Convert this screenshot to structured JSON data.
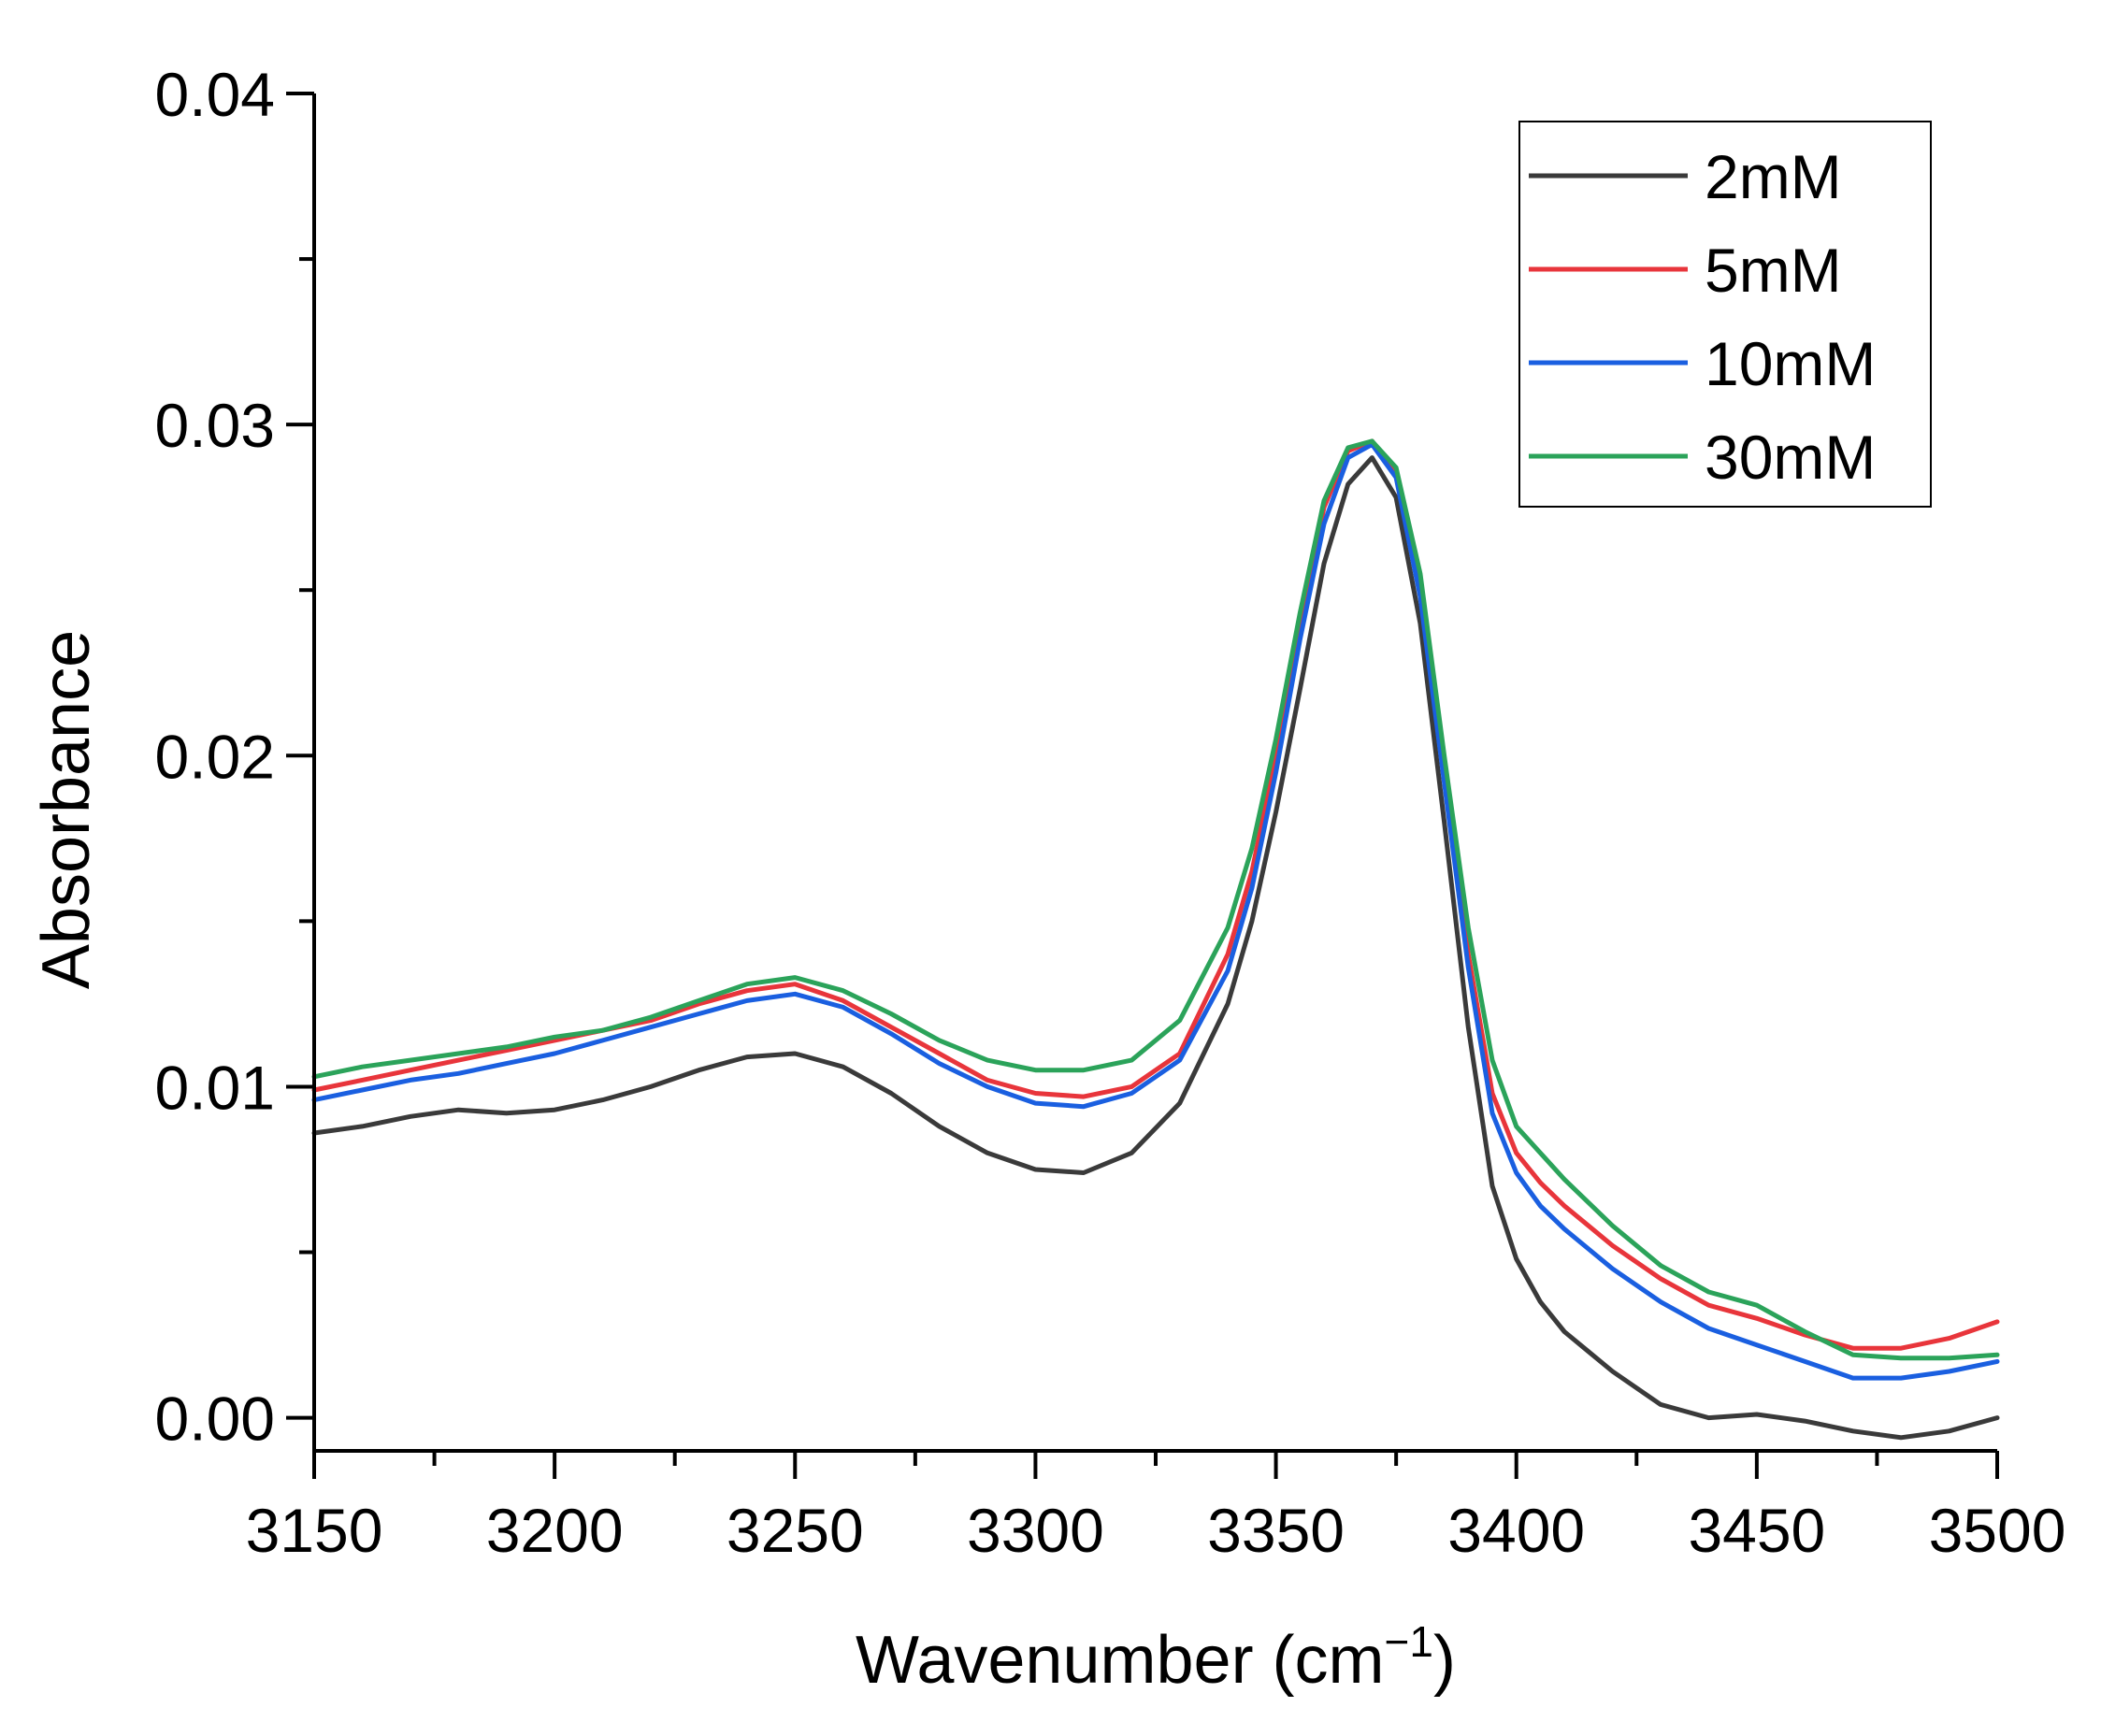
{
  "chart_data": {
    "type": "line",
    "title": "",
    "xlabel": "Wavenumber (cm",
    "xlabel_sup": "−1",
    "xlabel_close": ")",
    "ylabel": "Absorbance",
    "xlim": [
      3150,
      3500
    ],
    "ylim": [
      -0.001,
      0.04
    ],
    "xticks": [
      3150,
      3200,
      3250,
      3300,
      3350,
      3400,
      3450,
      3500
    ],
    "xtick_labels": [
      "3150",
      "3200",
      "3250",
      "3300",
      "3350",
      "3400",
      "3450",
      "3500"
    ],
    "yticks": [
      0.0,
      0.01,
      0.02,
      0.03,
      0.04
    ],
    "ytick_labels": [
      "0.00",
      "0.01",
      "0.02",
      "0.03",
      "0.04"
    ],
    "grid": false,
    "legend_position": "top-right",
    "x": [
      3150,
      3160,
      3170,
      3180,
      3190,
      3200,
      3210,
      3220,
      3230,
      3240,
      3250,
      3260,
      3270,
      3280,
      3290,
      3300,
      3310,
      3320,
      3330,
      3340,
      3345,
      3350,
      3355,
      3360,
      3365,
      3370,
      3375,
      3380,
      3385,
      3390,
      3395,
      3400,
      3405,
      3410,
      3415,
      3420,
      3430,
      3440,
      3450,
      3460,
      3470,
      3480,
      3490,
      3500
    ],
    "series": [
      {
        "name": "2mM",
        "color": "#3a3a3a",
        "values": [
          0.0086,
          0.0088,
          0.0091,
          0.0093,
          0.0092,
          0.0093,
          0.0096,
          0.01,
          0.0105,
          0.0109,
          0.011,
          0.0106,
          0.0098,
          0.0088,
          0.008,
          0.0075,
          0.0074,
          0.008,
          0.0095,
          0.0125,
          0.015,
          0.0183,
          0.022,
          0.0258,
          0.0282,
          0.029,
          0.0278,
          0.024,
          0.018,
          0.0118,
          0.007,
          0.0048,
          0.0035,
          0.0026,
          0.002,
          0.0014,
          0.0004,
          0.0,
          0.0001,
          -0.0001,
          -0.0004,
          -0.0006,
          -0.0004,
          0.0
        ]
      },
      {
        "name": "5mM",
        "color": "#e8353b",
        "values": [
          0.0099,
          0.0102,
          0.0105,
          0.0108,
          0.0111,
          0.0114,
          0.0117,
          0.012,
          0.0125,
          0.0129,
          0.0131,
          0.0126,
          0.0118,
          0.011,
          0.0102,
          0.0098,
          0.0097,
          0.01,
          0.011,
          0.014,
          0.0165,
          0.02,
          0.024,
          0.0275,
          0.0292,
          0.0295,
          0.0285,
          0.025,
          0.0195,
          0.014,
          0.0098,
          0.008,
          0.0071,
          0.0064,
          0.0058,
          0.0052,
          0.0042,
          0.0034,
          0.003,
          0.0025,
          0.0021,
          0.0021,
          0.0024,
          0.0029
        ]
      },
      {
        "name": "10mM",
        "color": "#1a5fe0",
        "values": [
          0.0096,
          0.0099,
          0.0102,
          0.0104,
          0.0107,
          0.011,
          0.0114,
          0.0118,
          0.0122,
          0.0126,
          0.0128,
          0.0124,
          0.0116,
          0.0107,
          0.01,
          0.0095,
          0.0094,
          0.0098,
          0.0108,
          0.0135,
          0.016,
          0.0195,
          0.0235,
          0.027,
          0.029,
          0.0294,
          0.0284,
          0.0248,
          0.0192,
          0.0136,
          0.0092,
          0.0074,
          0.0064,
          0.0057,
          0.0051,
          0.0045,
          0.0035,
          0.0027,
          0.0022,
          0.0017,
          0.0012,
          0.0012,
          0.0014,
          0.0017
        ]
      },
      {
        "name": "30mM",
        "color": "#2ba35a",
        "values": [
          0.0103,
          0.0106,
          0.0108,
          0.011,
          0.0112,
          0.0115,
          0.0117,
          0.0121,
          0.0126,
          0.0131,
          0.0133,
          0.0129,
          0.0122,
          0.0114,
          0.0108,
          0.0105,
          0.0105,
          0.0108,
          0.012,
          0.0148,
          0.0172,
          0.0205,
          0.0243,
          0.0277,
          0.0293,
          0.0295,
          0.0287,
          0.0255,
          0.02,
          0.0148,
          0.0108,
          0.0088,
          0.008,
          0.0072,
          0.0065,
          0.0058,
          0.0046,
          0.0038,
          0.0034,
          0.0026,
          0.0019,
          0.0018,
          0.0018,
          0.0019
        ]
      }
    ]
  }
}
